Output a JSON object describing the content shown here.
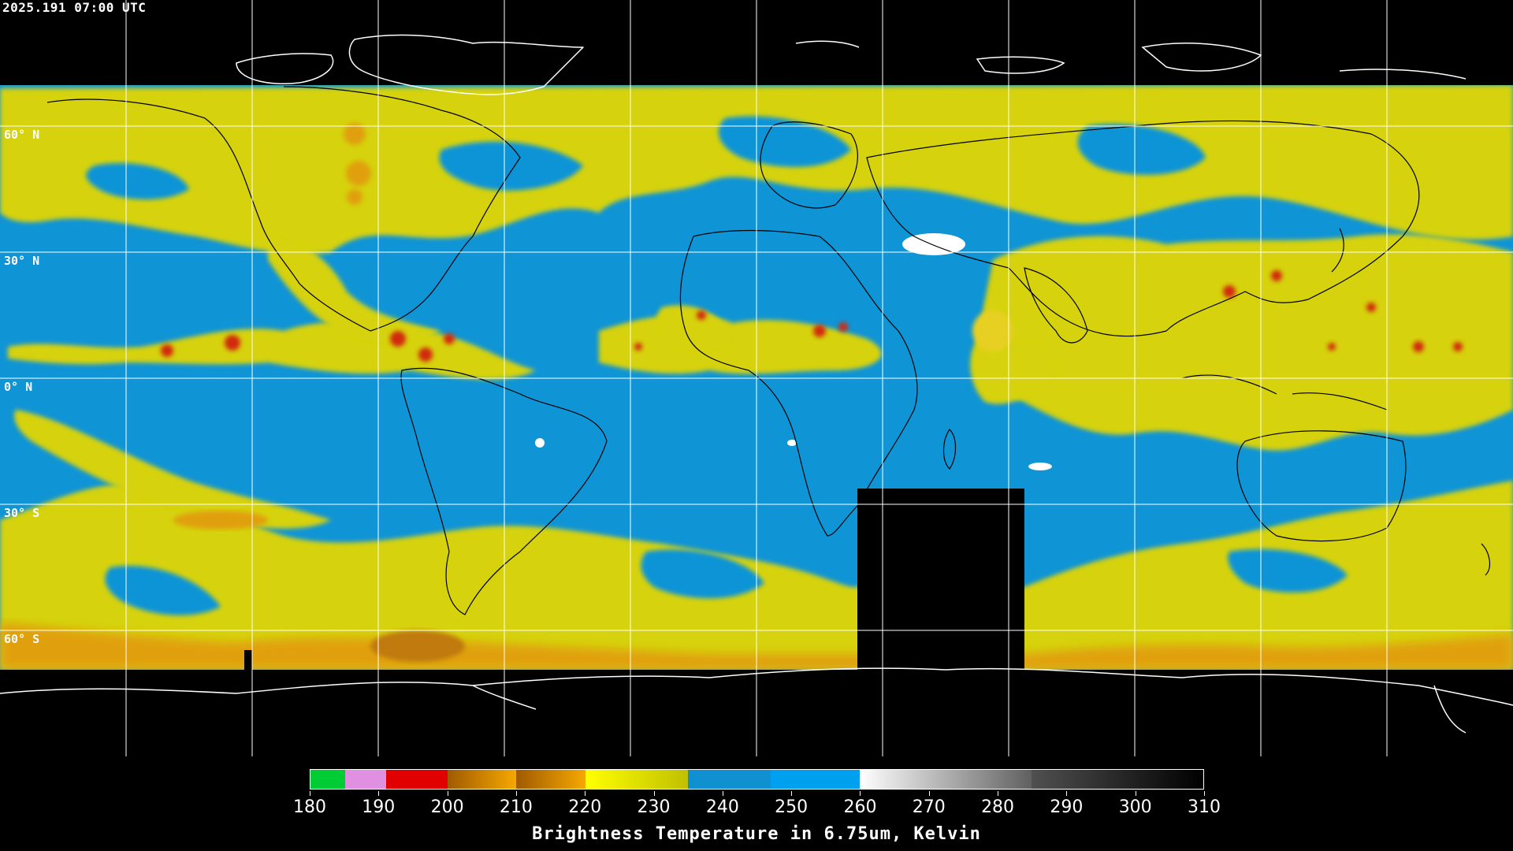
{
  "header": {
    "timestamp": "2025.191 07:00 UTC"
  },
  "map": {
    "projection": "equirectangular",
    "lat_labels": [
      "60° N",
      "30° N",
      "0° N",
      "30° S",
      "60° S"
    ],
    "colors": {
      "vapor_dry": "#0f94d6",
      "vapor_moist": "#d6d20a",
      "vapor_very_moist": "#e0a010",
      "deep_convection": "#d22a10",
      "coldest": "#ffffff",
      "missing": "#000000",
      "coastline": "#000000",
      "polar_coast": "#ffffff",
      "grid": "#ffffff"
    }
  },
  "colorbar": {
    "title": "Brightness Temperature in 6.75um, Kelvin",
    "ticks": [
      "180",
      "190",
      "200",
      "210",
      "220",
      "230",
      "240",
      "250",
      "260",
      "270",
      "280",
      "290",
      "300",
      "310"
    ],
    "min": 180,
    "max": 310,
    "segments": [
      {
        "from": 180,
        "to": 185,
        "color": "#00cc33"
      },
      {
        "from": 185,
        "to": 191,
        "color": "#e090e0"
      },
      {
        "from": 191,
        "to": 200,
        "color": "#e00000"
      },
      {
        "from": 200,
        "to": 210,
        "color": "#b86a00"
      },
      {
        "from": 210,
        "to": 220,
        "color": "#f0a000"
      },
      {
        "from": 220,
        "to": 235,
        "color": "#e0e000"
      },
      {
        "from": 235,
        "to": 247,
        "color": "#1090d0"
      },
      {
        "from": 247,
        "to": 260,
        "color": "#00a0f0"
      },
      {
        "from": 260,
        "to": 285,
        "color": "#d0d0d0"
      },
      {
        "from": 285,
        "to": 310,
        "color": "#101010"
      }
    ]
  }
}
